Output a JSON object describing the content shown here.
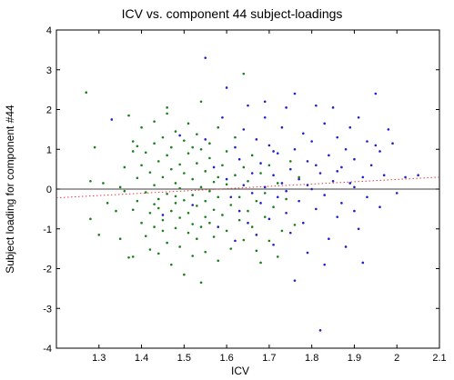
{
  "chart_data": {
    "type": "scatter",
    "title": "ICV vs. component 44 subject-loadings",
    "xlabel": "ICV",
    "ylabel": "Subject loading for component #44",
    "xlim": [
      1.2,
      2.1
    ],
    "ylim": [
      -4,
      4
    ],
    "xticks": [
      "1.3",
      "1.4",
      "1.5",
      "1.6",
      "1.7",
      "1.8",
      "1.9",
      "2",
      "2.1"
    ],
    "yticks": [
      "-4",
      "-3",
      "-2",
      "-1",
      "0",
      "1",
      "2",
      "3",
      "4"
    ],
    "grid": false,
    "legend": "none",
    "colors": {
      "group_a": "#1a7f1a",
      "group_b": "#1f1fcc",
      "zero_line": "#000000",
      "fit_line": "#e23b3b"
    },
    "zero_line": {
      "y": 0
    },
    "fit_line": {
      "x": [
        1.2,
        2.1
      ],
      "y": [
        -0.22,
        0.3
      ],
      "style": "dotted"
    },
    "series": [
      {
        "color_key": "group_a",
        "points": [
          [
            1.27,
            2.43
          ],
          [
            1.28,
            0.2
          ],
          [
            1.28,
            -0.75
          ],
          [
            1.29,
            1.05
          ],
          [
            1.3,
            -1.15
          ],
          [
            1.31,
            0.15
          ],
          [
            1.32,
            -0.35
          ],
          [
            1.34,
            -0.55
          ],
          [
            1.35,
            0.05
          ],
          [
            1.35,
            -1.25
          ],
          [
            1.36,
            -0.05
          ],
          [
            1.36,
            0.55
          ],
          [
            1.37,
            1.85
          ],
          [
            1.37,
            -1.72
          ],
          [
            1.38,
            0.95
          ],
          [
            1.38,
            -0.52
          ],
          [
            1.38,
            1.2
          ],
          [
            1.38,
            -1.7
          ],
          [
            1.39,
            1.08
          ],
          [
            1.39,
            0.28
          ],
          [
            1.39,
            -0.3
          ],
          [
            1.4,
            -0.85
          ],
          [
            1.4,
            1.55
          ],
          [
            1.4,
            0.6
          ],
          [
            1.41,
            -0.08
          ],
          [
            1.41,
            -1.18
          ],
          [
            1.41,
            0.92
          ],
          [
            1.42,
            -0.6
          ],
          [
            1.42,
            0.42
          ],
          [
            1.42,
            -1.52
          ],
          [
            1.43,
            1.15
          ],
          [
            1.43,
            0.1
          ],
          [
            1.43,
            -0.95
          ],
          [
            1.43,
            1.7
          ],
          [
            1.44,
            -0.25
          ],
          [
            1.44,
            0.7
          ],
          [
            1.44,
            -1.62
          ],
          [
            1.44,
            -0.48
          ],
          [
            1.45,
            0.3
          ],
          [
            1.45,
            1.3
          ],
          [
            1.45,
            -0.78
          ],
          [
            1.45,
            -1.05
          ],
          [
            1.46,
            0.85
          ],
          [
            1.46,
            -0.12
          ],
          [
            1.46,
            -1.35
          ],
          [
            1.46,
            1.9
          ],
          [
            1.47,
            0.5
          ],
          [
            1.47,
            -0.55
          ],
          [
            1.47,
            -1.9
          ],
          [
            1.47,
            1.05
          ],
          [
            1.48,
            -0.35
          ],
          [
            1.48,
            0.15
          ],
          [
            1.48,
            -0.98
          ],
          [
            1.48,
            1.45
          ],
          [
            1.49,
            0.62
          ],
          [
            1.49,
            -0.72
          ],
          [
            1.49,
            -1.45
          ],
          [
            1.49,
            0.02
          ],
          [
            1.5,
            1.22
          ],
          [
            1.5,
            -0.28
          ],
          [
            1.5,
            -2.15
          ],
          [
            1.5,
            0.4
          ],
          [
            1.51,
            -1.1
          ],
          [
            1.51,
            0.9
          ],
          [
            1.51,
            -0.6
          ],
          [
            1.51,
            1.65
          ],
          [
            1.52,
            -0.15
          ],
          [
            1.52,
            0.25
          ],
          [
            1.52,
            -1.68
          ],
          [
            1.52,
            -0.88
          ],
          [
            1.53,
            1.38
          ],
          [
            1.53,
            0.65
          ],
          [
            1.53,
            -0.42
          ],
          [
            1.53,
            -1.25
          ],
          [
            1.54,
            0.05
          ],
          [
            1.54,
            1.0
          ],
          [
            1.54,
            -0.95
          ],
          [
            1.54,
            2.2
          ],
          [
            1.55,
            -0.3
          ],
          [
            1.55,
            0.45
          ],
          [
            1.55,
            -1.58
          ],
          [
            1.55,
            -0.7
          ],
          [
            1.56,
            1.15
          ],
          [
            1.56,
            -0.05
          ],
          [
            1.56,
            -0.85
          ],
          [
            1.56,
            0.78
          ],
          [
            1.57,
            -1.2
          ],
          [
            1.57,
            0.18
          ],
          [
            1.57,
            -0.52
          ],
          [
            1.58,
            1.55
          ],
          [
            1.58,
            -0.2
          ],
          [
            1.58,
            -1.8
          ],
          [
            1.59,
            0.6
          ],
          [
            1.59,
            -0.65
          ],
          [
            1.6,
            0.95
          ],
          [
            1.6,
            -1.05
          ],
          [
            1.6,
            0.12
          ],
          [
            1.61,
            -0.4
          ],
          [
            1.61,
            -1.5
          ],
          [
            1.62,
            0.35
          ],
          [
            1.62,
            1.3
          ],
          [
            1.63,
            -0.78
          ],
          [
            1.63,
            -0.2
          ],
          [
            1.64,
            2.9
          ],
          [
            1.64,
            0.55
          ],
          [
            1.64,
            -1.28
          ],
          [
            1.65,
            -0.55
          ],
          [
            1.65,
            0.2
          ],
          [
            1.66,
            -0.95
          ],
          [
            1.66,
            0.85
          ],
          [
            1.67,
            -1.55
          ],
          [
            1.67,
            -0.3
          ],
          [
            1.68,
            0.4
          ],
          [
            1.68,
            -1.85
          ],
          [
            1.69,
            -0.1
          ],
          [
            1.69,
            -0.7
          ],
          [
            1.7,
            -1.3
          ],
          [
            1.7,
            0.6
          ],
          [
            1.71,
            -0.45
          ],
          [
            1.72,
            -1.7
          ],
          [
            1.72,
            0.15
          ],
          [
            1.73,
            -1.05
          ],
          [
            1.74,
            -0.25
          ],
          [
            1.75,
            0.7
          ],
          [
            1.76,
            -0.9
          ],
          [
            1.77,
            0.3
          ],
          [
            1.54,
            -2.35
          ],
          [
            1.48,
            -0.18
          ],
          [
            1.43,
            -0.38
          ],
          [
            1.52,
            1.05
          ],
          [
            1.58,
            0.3
          ],
          [
            1.46,
            2.05
          ]
        ]
      },
      {
        "color_key": "group_b",
        "points": [
          [
            1.33,
            1.75
          ],
          [
            1.45,
            -0.65
          ],
          [
            1.49,
            1.35
          ],
          [
            1.52,
            -0.4
          ],
          [
            1.55,
            3.3
          ],
          [
            1.55,
            1.25
          ],
          [
            1.57,
            0.55
          ],
          [
            1.58,
            -0.95
          ],
          [
            1.59,
            1.8
          ],
          [
            1.6,
            2.55
          ],
          [
            1.6,
            0.25
          ],
          [
            1.61,
            -0.2
          ],
          [
            1.62,
            1.05
          ],
          [
            1.62,
            -1.3
          ],
          [
            1.63,
            0.75
          ],
          [
            1.63,
            -0.55
          ],
          [
            1.64,
            1.5
          ],
          [
            1.64,
            0.1
          ],
          [
            1.65,
            -0.85
          ],
          [
            1.65,
            2.1
          ],
          [
            1.66,
            0.4
          ],
          [
            1.66,
            -0.1
          ],
          [
            1.67,
            1.25
          ],
          [
            1.67,
            -1.15
          ],
          [
            1.68,
            0.65
          ],
          [
            1.68,
            -0.35
          ],
          [
            1.69,
            1.8
          ],
          [
            1.69,
            0.05
          ],
          [
            1.7,
            -0.75
          ],
          [
            1.7,
            1.1
          ],
          [
            1.71,
            0.35
          ],
          [
            1.71,
            -1.4
          ],
          [
            1.72,
            0.9
          ],
          [
            1.72,
            -0.2
          ],
          [
            1.73,
            1.55
          ],
          [
            1.73,
            0.15
          ],
          [
            1.74,
            -0.6
          ],
          [
            1.74,
            2.05
          ],
          [
            1.75,
            0.5
          ],
          [
            1.75,
            -1.1
          ],
          [
            1.76,
            2.4
          ],
          [
            1.76,
            1.0
          ],
          [
            1.77,
            -0.3
          ],
          [
            1.77,
            0.25
          ],
          [
            1.78,
            1.4
          ],
          [
            1.78,
            -0.85
          ],
          [
            1.79,
            0.7
          ],
          [
            1.79,
            -1.6
          ],
          [
            1.8,
            0.0
          ],
          [
            1.8,
            1.2
          ],
          [
            1.81,
            2.1
          ],
          [
            1.81,
            -0.5
          ],
          [
            1.82,
            0.4
          ],
          [
            1.82,
            -3.55
          ],
          [
            1.83,
            1.65
          ],
          [
            1.83,
            -0.15
          ],
          [
            1.84,
            0.85
          ],
          [
            1.84,
            -1.25
          ],
          [
            1.85,
            2.05
          ],
          [
            1.85,
            0.2
          ],
          [
            1.86,
            -0.7
          ],
          [
            1.86,
            1.3
          ],
          [
            1.87,
            0.55
          ],
          [
            1.87,
            -0.35
          ],
          [
            1.88,
            1.0
          ],
          [
            1.88,
            -1.45
          ],
          [
            1.89,
            0.15
          ],
          [
            1.89,
            1.55
          ],
          [
            1.9,
            -0.55
          ],
          [
            1.9,
            0.75
          ],
          [
            1.91,
            1.8
          ],
          [
            1.91,
            -1.0
          ],
          [
            1.92,
            0.3
          ],
          [
            1.92,
            -1.85
          ],
          [
            1.93,
            1.2
          ],
          [
            1.93,
            -0.2
          ],
          [
            1.94,
            0.6
          ],
          [
            1.95,
            2.4
          ],
          [
            1.95,
            1.1
          ],
          [
            1.96,
            -0.45
          ],
          [
            1.96,
            0.95
          ],
          [
            1.97,
            0.35
          ],
          [
            1.98,
            1.5
          ],
          [
            1.99,
            1.15
          ],
          [
            2.0,
            -0.1
          ],
          [
            2.02,
            0.3
          ],
          [
            2.05,
            0.35
          ],
          [
            1.76,
            -2.3
          ],
          [
            1.83,
            -1.9
          ],
          [
            1.71,
            0.95
          ],
          [
            1.79,
            0.1
          ],
          [
            1.86,
            0.45
          ],
          [
            1.74,
            -0.05
          ],
          [
            1.69,
            2.2
          ],
          [
            1.81,
            0.6
          ],
          [
            1.9,
            0.05
          ]
        ]
      }
    ]
  }
}
